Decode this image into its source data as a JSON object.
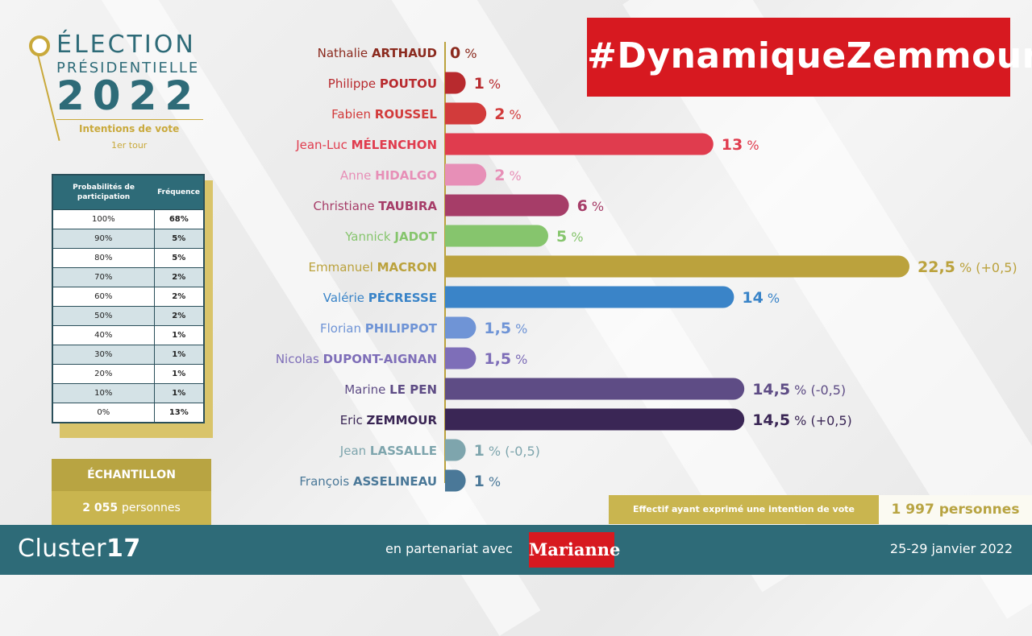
{
  "header": {
    "title_line1": "ÉLECTION",
    "title_line2": "PRÉSIDENTIELLE",
    "year": "2022",
    "subtitle": "Intentions de vote",
    "round": "1er tour"
  },
  "hashtag": "#DynamiqueZemmour",
  "participation_table": {
    "col1": "Probabilités de participation",
    "col2": "Fréquence",
    "rows": [
      {
        "prob": "100%",
        "freq": "68%"
      },
      {
        "prob": "90%",
        "freq": "5%"
      },
      {
        "prob": "80%",
        "freq": "5%"
      },
      {
        "prob": "70%",
        "freq": "2%"
      },
      {
        "prob": "60%",
        "freq": "2%"
      },
      {
        "prob": "50%",
        "freq": "2%"
      },
      {
        "prob": "40%",
        "freq": "1%"
      },
      {
        "prob": "30%",
        "freq": "1%"
      },
      {
        "prob": "20%",
        "freq": "1%"
      },
      {
        "prob": "10%",
        "freq": "1%"
      },
      {
        "prob": "0%",
        "freq": "13%"
      }
    ]
  },
  "echantillon": {
    "label": "ÉCHANTILLON",
    "value": "2 055",
    "unit": "personnes"
  },
  "effectif": {
    "label": "Effectif ayant exprimé une intention de vote",
    "value": "1 997 personnes"
  },
  "footer": {
    "brand_light": "Cluster",
    "brand_bold": "17",
    "partner_text": "en partenariat avec",
    "partner_logo": "Marianne",
    "dates": "25-29 janvier 2022"
  },
  "chart_data": {
    "type": "bar",
    "orientation": "horizontal",
    "categories": [
      {
        "first": "Nathalie",
        "last": "ARTHAUD",
        "value": 0,
        "label": "0",
        "change": "",
        "color": "#8b2a1e"
      },
      {
        "first": "Philippe",
        "last": "POUTOU",
        "value": 1,
        "label": "1",
        "change": "",
        "color": "#b82a2e"
      },
      {
        "first": "Fabien",
        "last": "ROUSSEL",
        "value": 2,
        "label": "2",
        "change": "",
        "color": "#d23b3b"
      },
      {
        "first": "Jean-Luc",
        "last": "MÉLENCHON",
        "value": 13,
        "label": "13",
        "change": "",
        "color": "#e03c4e"
      },
      {
        "first": "Anne",
        "last": "HIDALGO",
        "value": 2,
        "label": "2",
        "change": "",
        "color": "#e78fb7"
      },
      {
        "first": "Christiane",
        "last": "TAUBIRA",
        "value": 6,
        "label": "6",
        "change": "",
        "color": "#a63d68"
      },
      {
        "first": "Yannick",
        "last": "JADOT",
        "value": 5,
        "label": "5",
        "change": "",
        "color": "#86c56d"
      },
      {
        "first": "Emmanuel",
        "last": "MACRON",
        "value": 22.5,
        "label": "22,5",
        "change": "(+0,5)",
        "color": "#bba23d"
      },
      {
        "first": "Valérie",
        "last": "PÉCRESSE",
        "value": 14,
        "label": "14",
        "change": "",
        "color": "#3a84c8"
      },
      {
        "first": "Florian",
        "last": "PHILIPPOT",
        "value": 1.5,
        "label": "1,5",
        "change": "",
        "color": "#6f94d6"
      },
      {
        "first": "Nicolas",
        "last": "DUPONT-AIGNAN",
        "value": 1.5,
        "label": "1,5",
        "change": "",
        "color": "#7e6eb8"
      },
      {
        "first": "Marine",
        "last": "LE PEN",
        "value": 14.5,
        "label": "14,5",
        "change": "(-0,5)",
        "color": "#5e4c85"
      },
      {
        "first": "Eric",
        "last": "ZEMMOUR",
        "value": 14.5,
        "label": "14,5",
        "change": "(+0,5)",
        "color": "#3a2655"
      },
      {
        "first": "Jean",
        "last": "LASSALLE",
        "value": 1,
        "label": "1",
        "change": "(-0,5)",
        "color": "#7ea5ad"
      },
      {
        "first": "François",
        "last": "ASSELINEAU",
        "value": 1,
        "label": "1",
        "change": "",
        "color": "#4a7898"
      }
    ],
    "unit": "%"
  }
}
